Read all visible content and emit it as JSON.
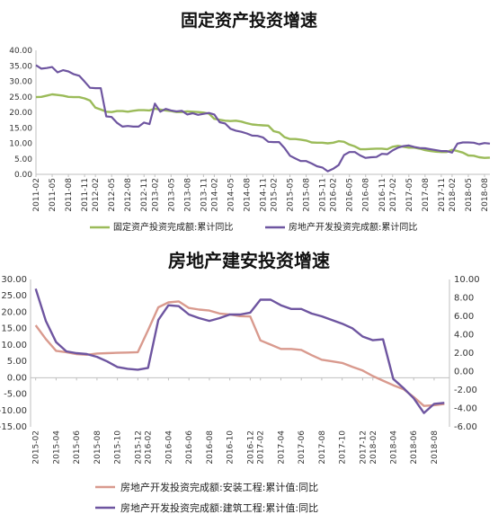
{
  "chart_data": [
    {
      "type": "line",
      "title": "固定资产投资增速",
      "x": [
        "2011-02",
        "2011-03",
        "2011-04",
        "2011-05",
        "2011-06",
        "2011-07",
        "2011-08",
        "2011-09",
        "2011-10",
        "2011-11",
        "2011-12",
        "2012-02",
        "2012-03",
        "2012-04",
        "2012-05",
        "2012-06",
        "2012-07",
        "2012-08",
        "2012-09",
        "2012-10",
        "2012-11",
        "2012-12",
        "2013-02",
        "2013-03",
        "2013-04",
        "2013-05",
        "2013-06",
        "2013-07",
        "2013-08",
        "2013-09",
        "2013-10",
        "2013-11",
        "2013-12",
        "2014-02",
        "2014-03",
        "2014-04",
        "2014-05",
        "2014-06",
        "2014-07",
        "2014-08",
        "2014-09",
        "2014-10",
        "2014-11",
        "2014-12",
        "2015-02",
        "2015-03",
        "2015-04",
        "2015-05",
        "2015-06",
        "2015-07",
        "2015-08",
        "2015-09",
        "2015-10",
        "2015-11",
        "2015-12",
        "2016-02",
        "2016-03",
        "2016-04",
        "2016-05",
        "2016-06",
        "2016-07",
        "2016-08",
        "2016-09",
        "2016-10",
        "2016-11",
        "2016-12",
        "2017-02",
        "2017-03",
        "2017-04",
        "2017-05",
        "2017-06",
        "2017-07",
        "2017-08",
        "2017-09",
        "2017-10",
        "2017-11",
        "2017-12",
        "2018-02",
        "2018-03",
        "2018-04",
        "2018-05",
        "2018-06",
        "2018-07",
        "2018-08",
        "2018-09"
      ],
      "x_ticks": [
        "2011-02",
        "2011-05",
        "2011-08",
        "2011-11",
        "2012-02",
        "2012-05",
        "2012-08",
        "2012-11",
        "2013-02",
        "2013-05",
        "2013-08",
        "2013-11",
        "2014-02",
        "2014-05",
        "2014-08",
        "2014-11",
        "2015-02",
        "2015-05",
        "2015-08",
        "2015-11",
        "2016-02",
        "2016-05",
        "2016-08",
        "2016-11",
        "2017-02",
        "2017-05",
        "2017-08",
        "2017-11",
        "2018-02",
        "2018-05",
        "2018-08"
      ],
      "y_ticks": [
        "0.00",
        "5.00",
        "10.00",
        "15.00",
        "20.00",
        "25.00",
        "30.00",
        "35.00",
        "40.00"
      ],
      "ylim": [
        0,
        40
      ],
      "series": [
        {
          "name": "固定资产投资完成额:累计同比",
          "color": "#9bbb59",
          "values": [
            24.9,
            25.0,
            25.4,
            25.8,
            25.6,
            25.4,
            25.0,
            24.9,
            24.9,
            24.5,
            23.8,
            21.5,
            20.9,
            20.2,
            20.1,
            20.4,
            20.4,
            20.2,
            20.5,
            20.7,
            20.7,
            20.6,
            21.2,
            20.9,
            20.6,
            20.4,
            20.1,
            20.1,
            20.3,
            20.2,
            20.1,
            19.9,
            19.6,
            17.9,
            17.6,
            17.3,
            17.2,
            17.3,
            17.0,
            16.5,
            16.1,
            15.9,
            15.8,
            15.7,
            13.9,
            13.5,
            12.0,
            11.4,
            11.4,
            11.2,
            10.9,
            10.3,
            10.2,
            10.2,
            10.0,
            10.2,
            10.7,
            10.5,
            9.6,
            9.0,
            8.1,
            8.1,
            8.2,
            8.3,
            8.3,
            8.1,
            8.9,
            9.2,
            8.9,
            8.6,
            8.6,
            8.3,
            7.8,
            7.5,
            7.3,
            7.2,
            7.2,
            7.9,
            7.5,
            7.0,
            6.1,
            6.0,
            5.5,
            5.3,
            5.4
          ]
        },
        {
          "name": "房地产开发投资完成额:累计同比",
          "color": "#6e55a0",
          "values": [
            35.2,
            34.1,
            34.3,
            34.6,
            32.9,
            33.6,
            33.2,
            32.3,
            31.8,
            29.9,
            27.9,
            27.8,
            27.8,
            18.7,
            18.5,
            16.6,
            15.4,
            15.6,
            15.4,
            15.4,
            16.7,
            16.2,
            22.8,
            20.2,
            21.1,
            20.6,
            20.3,
            20.5,
            19.3,
            19.7,
            19.2,
            19.5,
            19.8,
            19.3,
            16.8,
            16.4,
            14.7,
            14.1,
            13.7,
            13.2,
            12.5,
            12.4,
            11.9,
            10.5,
            10.4,
            10.4,
            8.5,
            6.0,
            5.1,
            4.3,
            4.3,
            3.5,
            2.6,
            2.2,
            1.0,
            1.8,
            3.0,
            6.2,
            7.2,
            7.2,
            6.1,
            5.3,
            5.5,
            5.6,
            6.6,
            6.5,
            7.7,
            8.6,
            9.1,
            9.3,
            8.8,
            8.5,
            8.4,
            8.1,
            7.8,
            7.5,
            7.5,
            7.0,
            9.9,
            10.3,
            10.3,
            10.2,
            9.7,
            10.1,
            9.9
          ]
        }
      ],
      "legend": "bottom",
      "grid": false
    },
    {
      "type": "line",
      "title": "房地产建安投资增速",
      "x": [
        "2015-02",
        "2015-03",
        "2015-04",
        "2015-05",
        "2015-06",
        "2015-07",
        "2015-08",
        "2015-09",
        "2015-10",
        "2015-11",
        "2015-12",
        "2016-02",
        "2016-03",
        "2016-04",
        "2016-05",
        "2016-06",
        "2016-07",
        "2016-08",
        "2016-09",
        "2016-10",
        "2016-11",
        "2016-12",
        "2017-02",
        "2017-03",
        "2017-04",
        "2017-05",
        "2017-06",
        "2017-07",
        "2017-08",
        "2017-09",
        "2017-10",
        "2017-11",
        "2017-12",
        "2018-02",
        "2018-03",
        "2018-04",
        "2018-05",
        "2018-06",
        "2018-07",
        "2018-08",
        "2018-09"
      ],
      "x_ticks": [
        "2015-02",
        "2015-04",
        "2015-06",
        "2015-08",
        "2015-10",
        "2015-12",
        "2016-02",
        "2016-04",
        "2016-06",
        "2016-08",
        "2016-10",
        "2016-12",
        "2017-02",
        "2017-04",
        "2017-06",
        "2017-08",
        "2017-10",
        "2017-12",
        "2018-02",
        "2018-04",
        "2018-06",
        "2018-08"
      ],
      "y_left_ticks": [
        "-15.00",
        "-10.00",
        "-5.00",
        "0.00",
        "5.00",
        "10.00",
        "15.00",
        "20.00",
        "25.00",
        "30.00"
      ],
      "y_right_ticks": [
        "-6.00",
        "-4.00",
        "-2.00",
        "0.00",
        "2.00",
        "4.00",
        "6.00",
        "8.00",
        "10.00"
      ],
      "ylim_left": [
        -15,
        30
      ],
      "ylim_right": [
        -6,
        10
      ],
      "series": [
        {
          "name": "房地产开发投资完成额:安装工程:累计值:同比",
          "axis": "left",
          "color": "#d99a8e",
          "values": [
            16.0,
            11.8,
            8.2,
            7.8,
            7.2,
            7.0,
            7.4,
            7.5,
            7.6,
            7.7,
            7.8,
            14.5,
            21.5,
            23.0,
            23.3,
            21.3,
            20.8,
            20.5,
            19.6,
            19.3,
            18.8,
            18.7,
            11.4,
            10.1,
            8.8,
            8.8,
            8.5,
            6.9,
            5.5,
            5.0,
            4.5,
            3.3,
            2.2,
            0.5,
            -0.9,
            -2.3,
            -3.5,
            -5.9,
            -8.6,
            -8.4,
            -8.0
          ]
        },
        {
          "name": "房地产开发投资完成额:建筑工程:累计值:同比",
          "axis": "right",
          "color": "#6e55a0",
          "values": [
            9.0,
            5.5,
            3.2,
            2.2,
            2.0,
            1.9,
            1.6,
            1.1,
            0.5,
            0.3,
            0.2,
            0.4,
            5.6,
            7.2,
            7.1,
            6.2,
            5.8,
            5.5,
            5.8,
            6.2,
            6.2,
            6.4,
            7.8,
            7.8,
            7.2,
            6.8,
            6.8,
            6.3,
            6.0,
            5.6,
            5.2,
            4.7,
            3.8,
            3.4,
            3.5,
            -0.8,
            -1.8,
            -2.9,
            -4.5,
            -3.5,
            -3.4
          ]
        }
      ],
      "legend": "bottom",
      "grid": false
    }
  ]
}
